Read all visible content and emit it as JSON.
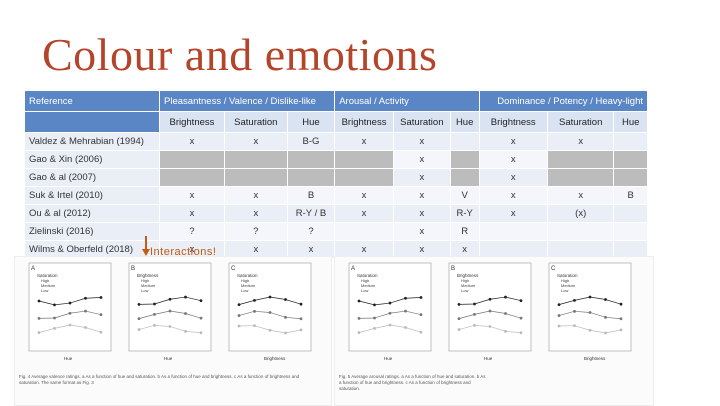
{
  "title": "Colour and emotions",
  "headers": {
    "reference": "Reference",
    "pleasantness": "Pleasantness / Valence / Dislike-like",
    "arousal": "Arousal / Activity",
    "dominance": "Dominance / Potency / Heavy-light"
  },
  "subheaders": [
    "Brightness",
    "Saturation",
    "Hue",
    "Brightness",
    "Saturation",
    "Hue",
    "Brightness",
    "Saturation",
    "Hue"
  ],
  "rows": [
    {
      "ref": "Valdez & Mehrabian (1994)",
      "cells": [
        "x",
        "x",
        "B-G",
        "x",
        "x",
        "",
        "x",
        "x",
        ""
      ]
    },
    {
      "ref": "Gao & Xin (2006)",
      "cells": [
        "",
        "",
        "",
        "",
        "x",
        "",
        "x",
        "",
        ""
      ]
    },
    {
      "ref": "Gao & al (2007)",
      "cells": [
        "",
        "",
        "",
        "",
        "x",
        "",
        "x",
        "",
        ""
      ]
    },
    {
      "ref": "Suk & Irtel (2010)",
      "cells": [
        "x",
        "x",
        "B",
        "x",
        "x",
        "V",
        "x",
        "x",
        "B"
      ]
    },
    {
      "ref": "Ou & al (2012)",
      "cells": [
        "x",
        "x",
        "R-Y / B",
        "x",
        "x",
        "R-Y",
        "x",
        "(x)",
        ""
      ]
    },
    {
      "ref": "Zielinski (2016)",
      "cells": [
        "?",
        "?",
        "?",
        "",
        "x",
        "R",
        "",
        "",
        ""
      ]
    },
    {
      "ref": "Wilms & Oberfeld (2018)",
      "cells": [
        "x",
        "x",
        "x",
        "x",
        "x",
        "x",
        "",
        "",
        ""
      ]
    }
  ],
  "dark_cells": [
    [
      1,
      0
    ],
    [
      1,
      1
    ],
    [
      1,
      2
    ],
    [
      1,
      3
    ],
    [
      1,
      5
    ],
    [
      1,
      7
    ],
    [
      1,
      8
    ],
    [
      2,
      0
    ],
    [
      2,
      1
    ],
    [
      2,
      2
    ],
    [
      2,
      3
    ],
    [
      2,
      5
    ],
    [
      2,
      7
    ],
    [
      2,
      8
    ]
  ],
  "annotation": "Interactions!",
  "figure1": {
    "panels": [
      "A",
      "B",
      "C"
    ],
    "legend_title": [
      "Saturation",
      "Brightness",
      "Saturation"
    ],
    "legend_items": [
      "High",
      "Medium",
      "Low"
    ],
    "xaxis_labels": [
      "Hue",
      "Hue",
      "Brightness"
    ],
    "caption": "Fig. 4 Average valence ratings. a As a function of hue and saturation. b As a function of hue and brightness. c As a function of brightness and saturation. The same format as Fig. 3"
  },
  "figure2": {
    "panels": [
      "A",
      "B",
      "C"
    ],
    "legend_title": [
      "Saturation",
      "Brightness",
      "Saturation"
    ],
    "legend_items": [
      "High",
      "Medium",
      "Low"
    ],
    "xaxis_labels": [
      "Hue",
      "Hue",
      "Brightness"
    ],
    "caption": "Fig. 5 Average arousal ratings. a As a function of hue and saturation. b As a function of hue and brightness. c As a function of brightness and saturation."
  }
}
